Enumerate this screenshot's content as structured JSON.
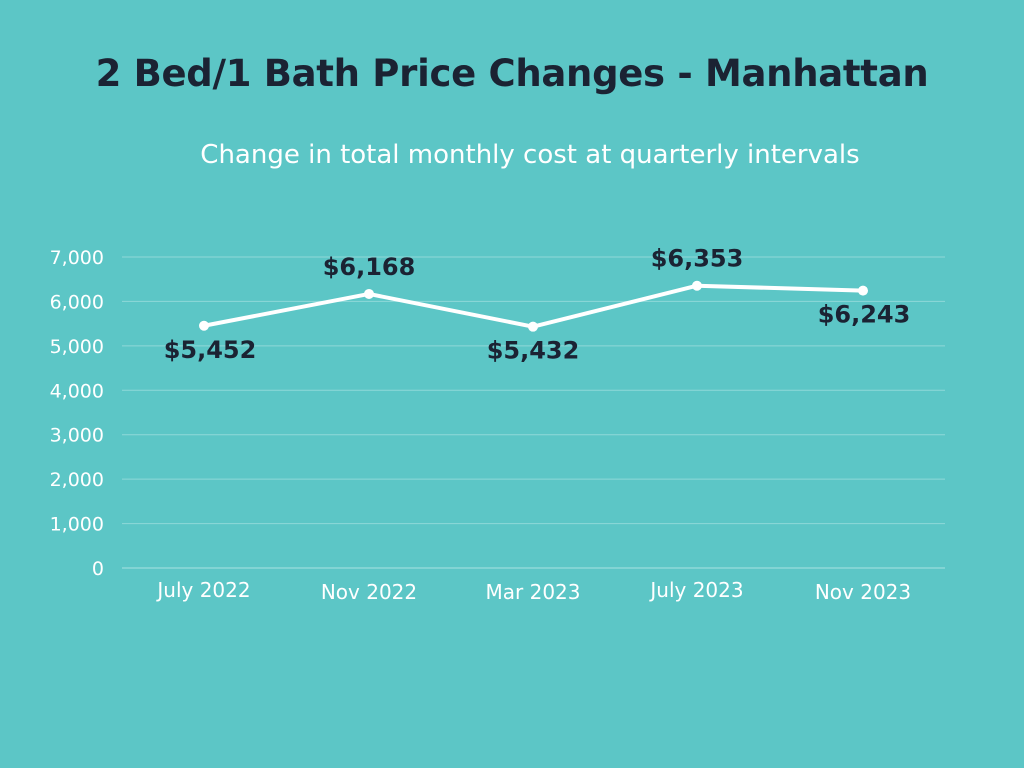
{
  "chart_data": {
    "type": "line",
    "title": "2 Bed/1 Bath Price Changes - Manhattan",
    "subtitle": "Change in total monthly cost at quarterly intervals",
    "categories": [
      "July 2022",
      "Nov 2022",
      "Mar 2023",
      "July 2023",
      "Nov 2023"
    ],
    "series": [
      {
        "name": "Total monthly cost",
        "values": [
          5452,
          6168,
          5432,
          6353,
          6243
        ],
        "labels": [
          "$5,452",
          "$6,168",
          "$5,432",
          "$6,353",
          "$6,243"
        ],
        "label_positions": [
          "below",
          "above",
          "below",
          "above",
          "below"
        ]
      }
    ],
    "yticks": [
      "0",
      "1,000",
      "2,000",
      "3,000",
      "4,000",
      "5,000",
      "6,000",
      "7,000"
    ],
    "ylim": [
      0,
      7000
    ],
    "xlabel": "",
    "ylabel": "",
    "grid": true,
    "colors": {
      "background": "#5CC6C6",
      "line": "#FFFFFF",
      "gridline": "#8FD8D8",
      "title": "#1B2333",
      "data_label": "#1B2333",
      "tick_label": "#FFFFFF"
    }
  }
}
